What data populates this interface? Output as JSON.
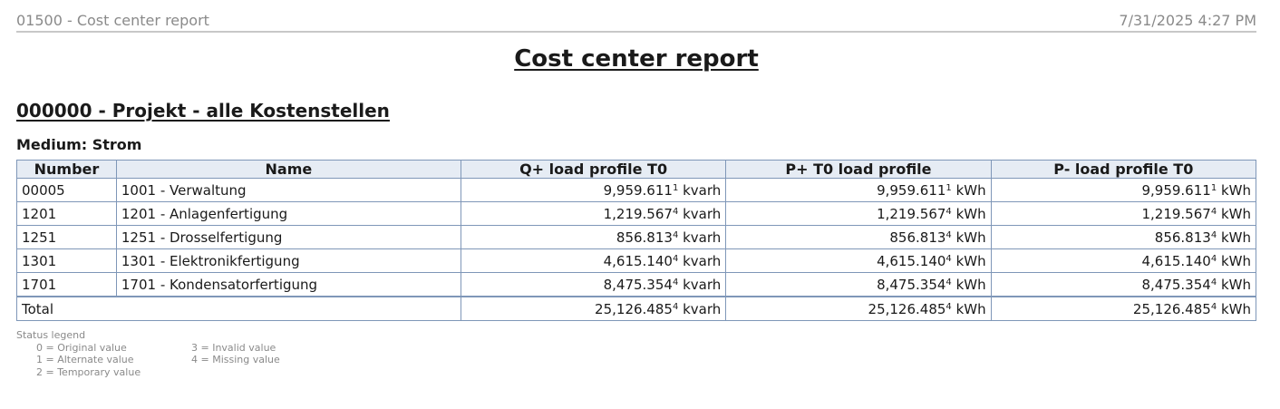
{
  "header": {
    "left": "01500 - Cost center report",
    "right": "7/31/2025 4:27 PM"
  },
  "title": "Cost center report",
  "section": "000000 - Projekt - alle Kostenstellen",
  "medium": "Medium: Strom",
  "table": {
    "columns": [
      "Number",
      "Name",
      "Q+ load profile T0",
      "P+ T0 load profile",
      "P- load profile T0"
    ],
    "rows": [
      {
        "number": "00005",
        "name": "1001 - Verwaltung",
        "q": {
          "value": "9,959.611",
          "status": "1",
          "unit": "kvarh"
        },
        "p": {
          "value": "9,959.611",
          "status": "1",
          "unit": "kWh"
        },
        "pm": {
          "value": "9,959.611",
          "status": "1",
          "unit": "kWh"
        }
      },
      {
        "number": "1201",
        "name": "1201 - Anlagenfertigung",
        "q": {
          "value": "1,219.567",
          "status": "4",
          "unit": "kvarh"
        },
        "p": {
          "value": "1,219.567",
          "status": "4",
          "unit": "kWh"
        },
        "pm": {
          "value": "1,219.567",
          "status": "4",
          "unit": "kWh"
        }
      },
      {
        "number": "1251",
        "name": "1251 - Drosselfertigung",
        "q": {
          "value": "856.813",
          "status": "4",
          "unit": "kvarh"
        },
        "p": {
          "value": "856.813",
          "status": "4",
          "unit": "kWh"
        },
        "pm": {
          "value": "856.813",
          "status": "4",
          "unit": "kWh"
        }
      },
      {
        "number": "1301",
        "name": "1301 - Elektronikfertigung",
        "q": {
          "value": "4,615.140",
          "status": "4",
          "unit": "kvarh"
        },
        "p": {
          "value": "4,615.140",
          "status": "4",
          "unit": "kWh"
        },
        "pm": {
          "value": "4,615.140",
          "status": "4",
          "unit": "kWh"
        }
      },
      {
        "number": "1701",
        "name": "1701 - Kondensatorfertigung",
        "q": {
          "value": "8,475.354",
          "status": "4",
          "unit": "kvarh"
        },
        "p": {
          "value": "8,475.354",
          "status": "4",
          "unit": "kWh"
        },
        "pm": {
          "value": "8,475.354",
          "status": "4",
          "unit": "kWh"
        }
      }
    ],
    "total": {
      "label": "Total",
      "q": {
        "value": "25,126.485",
        "status": "4",
        "unit": "kvarh"
      },
      "p": {
        "value": "25,126.485",
        "status": "4",
        "unit": "kWh"
      },
      "pm": {
        "value": "25,126.485",
        "status": "4",
        "unit": "kWh"
      }
    }
  },
  "legend": {
    "title": "Status legend",
    "items": [
      "0 = Original value",
      "1 = Alternate value",
      "2 = Temporary value",
      "3 = Invalid value",
      "4 = Missing value"
    ]
  }
}
